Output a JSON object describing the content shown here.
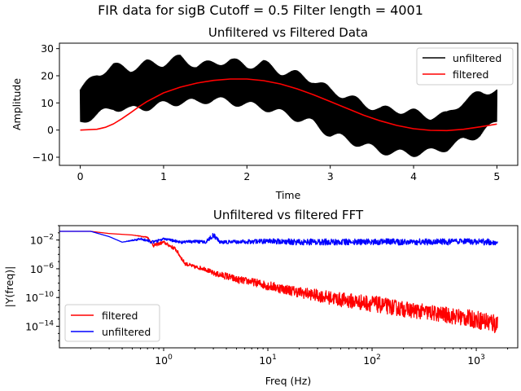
{
  "figure": {
    "suptitle": "FIR data for sigB  Cutoff = 0.5 Filter length = 4001"
  },
  "chart_data": [
    {
      "type": "line",
      "title": "Unfiltered vs Filtered Data",
      "xlabel": "Time",
      "ylabel": "Amplitude",
      "xlim": [
        -0.25,
        5.25
      ],
      "ylim": [
        -13,
        32
      ],
      "xticks": [
        0,
        1,
        2,
        3,
        4,
        5
      ],
      "yticks": [
        -10,
        0,
        10,
        20,
        30
      ],
      "legend": "top-right",
      "series": [
        {
          "name": "unfiltered",
          "color": "#000000",
          "x": [
            0.0,
            0.2,
            0.4,
            0.6,
            0.8,
            1.0,
            1.2,
            1.4,
            1.6,
            1.8,
            2.0,
            2.2,
            2.4,
            2.6,
            2.8,
            3.0,
            3.2,
            3.4,
            3.6,
            3.8,
            4.0,
            4.2,
            4.4,
            4.6,
            4.8,
            5.0
          ],
          "upper": [
            16,
            22,
            25,
            24,
            26,
            26,
            28,
            25,
            26,
            27,
            25,
            26,
            23,
            22,
            20,
            16,
            14,
            11,
            9,
            9,
            8,
            6,
            7,
            12,
            15,
            16
          ],
          "lower": [
            2,
            4,
            7,
            6,
            7,
            8,
            9,
            9,
            10,
            9,
            8,
            7,
            5,
            3,
            1,
            -3,
            -5,
            -7,
            -9,
            -10,
            -10,
            -9,
            -8,
            -5,
            -3,
            2
          ]
        },
        {
          "name": "filtered",
          "color": "#ff0000",
          "x": [
            0.0,
            0.2,
            0.3,
            0.4,
            0.5,
            0.6,
            0.7,
            0.8,
            1.0,
            1.2,
            1.4,
            1.6,
            1.8,
            2.0,
            2.2,
            2.4,
            2.6,
            2.8,
            3.0,
            3.2,
            3.4,
            3.6,
            3.8,
            4.0,
            4.2,
            4.4,
            4.6,
            4.8,
            5.0
          ],
          "y": [
            0.0,
            0.3,
            1.0,
            2.3,
            4.2,
            6.3,
            8.5,
            10.5,
            13.7,
            15.8,
            17.3,
            18.3,
            18.8,
            18.8,
            18.2,
            17.0,
            15.2,
            13.0,
            10.5,
            8.0,
            5.5,
            3.4,
            1.7,
            0.5,
            -0.1,
            -0.2,
            0.3,
            1.2,
            2.2
          ]
        }
      ]
    },
    {
      "type": "line",
      "title": "Unfiltered vs filtered FFT",
      "xlabel": "Freq (Hz)",
      "ylabel": "|Y(freq)|",
      "xscale": "log",
      "yscale": "log",
      "xlim": [
        0.1,
        2500
      ],
      "ylim": [
        1e-17,
        1
      ],
      "xticks": [
        1,
        10,
        100,
        1000
      ],
      "xtick_labels": [
        "10^0",
        "10^1",
        "10^2",
        "10^3"
      ],
      "yticks": [
        1e-14,
        1e-10,
        1e-06,
        0.01
      ],
      "ytick_labels": [
        "10^-14",
        "10^-10",
        "10^-6",
        "10^-2"
      ],
      "legend": "bottom-left",
      "series": [
        {
          "name": "filtered",
          "color": "#ff0000",
          "x": [
            0.1,
            0.2,
            0.3,
            0.5,
            0.7,
            0.8,
            1.0,
            1.3,
            1.6,
            2.0,
            2.5,
            3.0,
            4.0,
            5.0,
            7.0,
            10,
            20,
            50,
            100,
            200,
            500,
            1000,
            1600
          ],
          "upper": [
            0.16,
            0.16,
            0.08,
            0.05,
            0.03,
            0.003,
            0.008,
            0.001,
            1e-05,
            3e-06,
            2e-06,
            5e-07,
            3e-07,
            1e-07,
            5e-08,
            2e-08,
            3e-09,
            5e-10,
            2e-10,
            3e-11,
            5e-12,
            1.5e-12,
            8e-13
          ],
          "lower": [
            0.16,
            0.16,
            0.08,
            0.05,
            0.02,
            0.001,
            0.003,
            0.0003,
            3e-06,
            1e-06,
            5e-07,
            1e-07,
            3e-08,
            1e-08,
            5e-09,
            1e-09,
            1e-10,
            5e-12,
            1e-12,
            2e-13,
            3e-14,
            5e-15,
            6e-16
          ]
        },
        {
          "name": "unfiltered",
          "color": "#0000ff",
          "x": [
            0.1,
            0.2,
            0.3,
            0.4,
            0.6,
            0.8,
            1.0,
            1.5,
            2.0,
            2.5,
            3.0,
            3.5,
            5.0,
            10,
            20,
            50,
            100,
            200,
            500,
            1000,
            1600
          ],
          "upper": [
            0.16,
            0.16,
            0.03,
            0.005,
            0.02,
            0.008,
            0.02,
            0.008,
            0.01,
            0.008,
            0.1,
            0.008,
            0.01,
            0.015,
            0.015,
            0.015,
            0.015,
            0.015,
            0.015,
            0.015,
            0.015
          ],
          "lower": [
            0.16,
            0.16,
            0.03,
            0.005,
            0.01,
            0.003,
            0.01,
            0.003,
            0.004,
            0.003,
            0.02,
            0.003,
            0.003,
            0.003,
            0.002,
            0.002,
            0.002,
            0.002,
            0.002,
            0.002,
            0.002
          ]
        }
      ]
    }
  ]
}
